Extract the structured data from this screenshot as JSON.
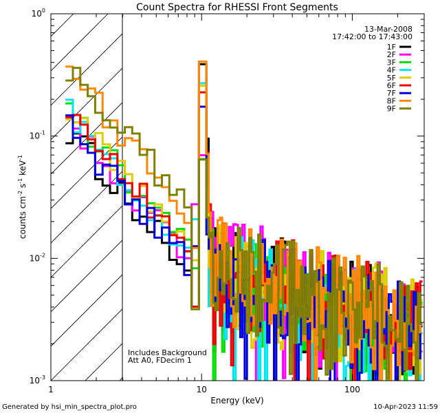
{
  "chart_data": {
    "type": "line",
    "title": "Count Spectra for RHESSI Front Segments",
    "xlabel": "Energy (keV)",
    "ylabel_parts": {
      "base": "counts cm",
      "e1": "-2",
      "mid1": " s",
      "e2": "-1",
      "mid2": " keV",
      "e3": "-1"
    },
    "xscale": "log",
    "yscale": "log",
    "xlim": [
      1,
      300
    ],
    "ylim": [
      0.001,
      1
    ],
    "x_ticks": [
      {
        "value": 1,
        "label": "1"
      },
      {
        "value": 10,
        "label": "10"
      },
      {
        "value": 100,
        "label": "100"
      }
    ],
    "y_ticks": [
      {
        "value": 0.001,
        "base": "10",
        "exp": "-3"
      },
      {
        "value": 0.01,
        "base": "10",
        "exp": "-2"
      },
      {
        "value": 0.1,
        "base": "10",
        "exp": "-1"
      },
      {
        "value": 1,
        "base": "10",
        "exp": "0"
      }
    ],
    "hatched_region_kev": [
      1,
      3
    ],
    "legend_header": [
      "13-Mar-2008",
      "17:42:00 to 17:43:00"
    ],
    "series": [
      {
        "name": "1F",
        "color": "#000000",
        "start": 0.12,
        "offset": 0.0
      },
      {
        "name": "2F",
        "color": "#ff00ff",
        "start": 0.13,
        "offset": 0.12
      },
      {
        "name": "3F",
        "color": "#00dd00",
        "start": 0.2,
        "offset": -0.1
      },
      {
        "name": "4F",
        "color": "#00e5ee",
        "start": 0.2,
        "offset": -0.15
      },
      {
        "name": "5F",
        "color": "#ddcc00",
        "start": 0.16,
        "offset": 0.05
      },
      {
        "name": "6F",
        "color": "#ee0000",
        "start": 0.17,
        "offset": 0.02
      },
      {
        "name": "7F",
        "color": "#0000dd",
        "start": 0.14,
        "offset": -0.05
      },
      {
        "name": "8F",
        "color": "#ff8800",
        "start": 0.34,
        "offset": 0.08
      },
      {
        "name": "9F",
        "color": "#808000",
        "start": 0.39,
        "offset": 0.03
      }
    ],
    "annotations": [
      "Includes Background",
      "Att A0, FDecim 1"
    ]
  },
  "footer": {
    "left": "Generated by hsi_min_spectra_plot.pro",
    "right": "10-Apr-2023 11:59"
  }
}
